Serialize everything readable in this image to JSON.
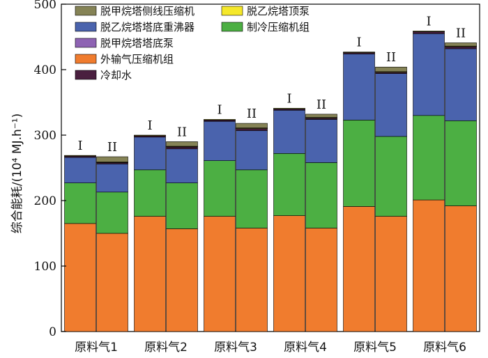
{
  "chart_data": {
    "type": "bar",
    "stacked": true,
    "ylabel": "综合能耗/(10⁴ MJ.h⁻¹)",
    "ylim": [
      0,
      500
    ],
    "yticks": [
      0,
      100,
      200,
      300,
      400,
      500
    ],
    "categories": [
      "原料气1",
      "原料气2",
      "原料气3",
      "原料气4",
      "原料气5",
      "原料气6"
    ],
    "cases": [
      "I",
      "II"
    ],
    "series": [
      {
        "name": "外输气压缩机组",
        "color": "#f07c2e",
        "values": [
          [
            165,
            150
          ],
          [
            176,
            157
          ],
          [
            176,
            158
          ],
          [
            177,
            158
          ],
          [
            191,
            176
          ],
          [
            201,
            192
          ]
        ]
      },
      {
        "name": "制冷压缩机组",
        "color": "#4caf43",
        "values": [
          [
            62,
            63
          ],
          [
            71,
            70
          ],
          [
            85,
            89
          ],
          [
            95,
            100
          ],
          [
            132,
            122
          ],
          [
            129,
            130
          ]
        ]
      },
      {
        "name": "脱乙烷塔塔底重沸器",
        "color": "#4a63ad",
        "values": [
          [
            39,
            43
          ],
          [
            50,
            52
          ],
          [
            60,
            60
          ],
          [
            66,
            66
          ],
          [
            101,
            96
          ],
          [
            125,
            110
          ]
        ]
      },
      {
        "name": "冷却水",
        "color": "#4a1f3f",
        "values": [
          [
            2,
            2
          ],
          [
            2,
            3
          ],
          [
            2,
            3
          ],
          [
            2,
            2
          ],
          [
            2,
            2
          ],
          [
            3,
            3
          ]
        ]
      },
      {
        "name": "脱甲烷塔塔底泵",
        "color": "#8e63b3",
        "values": [
          [
            0.5,
            0.5
          ],
          [
            0.5,
            0.5
          ],
          [
            0.5,
            0.5
          ],
          [
            0.5,
            0.5
          ],
          [
            0.5,
            0.5
          ],
          [
            0.5,
            0.5
          ]
        ]
      },
      {
        "name": "脱乙烷塔顶泵",
        "color": "#f5e82a",
        "values": [
          [
            0.5,
            0.5
          ],
          [
            0.5,
            0.5
          ],
          [
            0.5,
            0.5
          ],
          [
            0.5,
            0.5
          ],
          [
            0.5,
            0.5
          ],
          [
            0.5,
            0.5
          ]
        ]
      },
      {
        "name": "脱甲烷塔侧线压缩机",
        "color": "#858356",
        "values": [
          [
            0,
            8
          ],
          [
            0,
            7
          ],
          [
            0,
            7
          ],
          [
            0,
            5
          ],
          [
            0,
            7
          ],
          [
            0,
            5
          ]
        ]
      }
    ],
    "legend_placement": "top-left",
    "legend_order": [
      [
        "脱甲烷塔侧线压缩机",
        "脱乙烷塔顶泵"
      ],
      [
        "脱乙烷塔塔底重沸器",
        "制冷压缩机组"
      ],
      [
        "脱甲烷塔塔底泵"
      ],
      [
        "外输气压缩机组"
      ],
      [
        "冷却水"
      ]
    ],
    "grid": false
  }
}
